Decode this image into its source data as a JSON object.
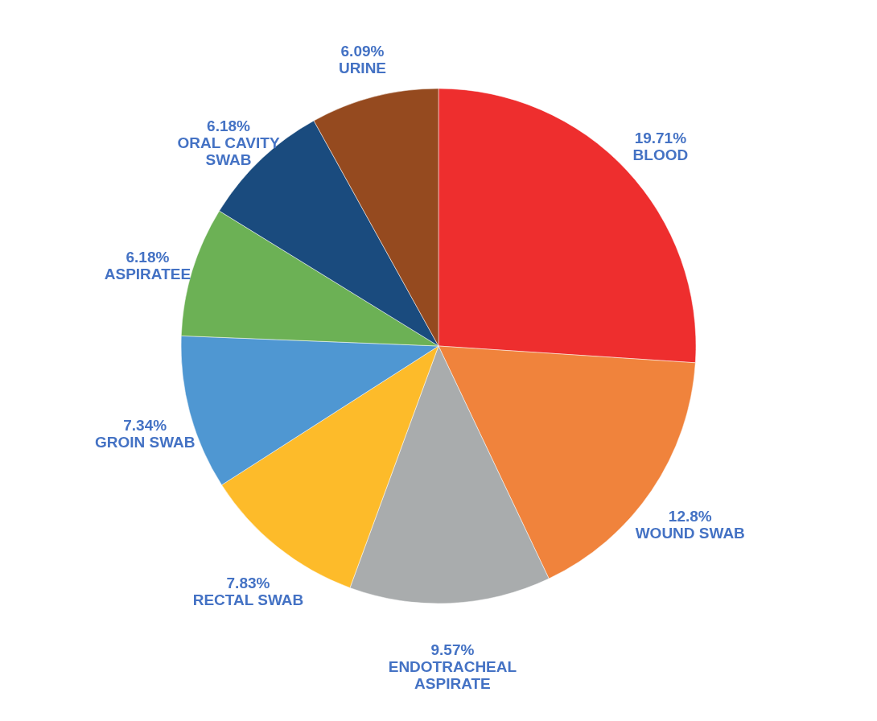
{
  "chart_data": {
    "type": "pie",
    "categories": [
      "BLOOD",
      "WOUND SWAB",
      "ENDOTRACHEAL ASPIRATE",
      "RECTAL SWAB",
      "GROIN SWAB",
      "ASPIRATEE",
      "ORAL CAVITY SWAB",
      "URINE"
    ],
    "values": [
      19.71,
      12.8,
      9.57,
      7.83,
      7.34,
      6.18,
      6.18,
      6.09
    ],
    "colors": [
      "#ee2e2e",
      "#f0833c",
      "#a9acad",
      "#fdbb2a",
      "#4f97d2",
      "#6cb155",
      "#1a4b7e",
      "#954a1f"
    ],
    "value_labels": [
      "19.71%",
      "12.8%",
      "9.57%",
      "7.83%",
      "7.34%",
      "6.18%",
      "6.18%",
      "6.09%"
    ]
  }
}
